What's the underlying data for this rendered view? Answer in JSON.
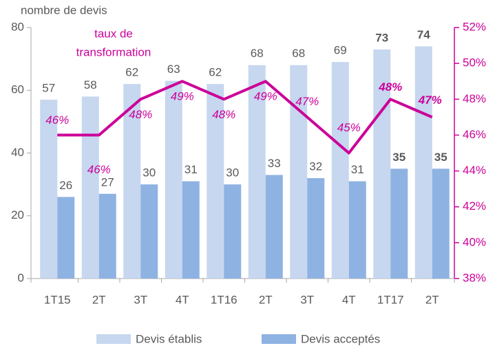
{
  "chart_data": {
    "type": "bar",
    "y_label": "nombre de devis",
    "y2_label_lines": [
      "taux de",
      "transformation"
    ],
    "categories": [
      "1T15",
      "2T",
      "3T",
      "4T",
      "1T16",
      "2T",
      "3T",
      "4T",
      "1T17",
      "2T"
    ],
    "series": [
      {
        "name": "Devis établis",
        "color": "#c6d7ef",
        "values": [
          57,
          58,
          62,
          63,
          62,
          68,
          68,
          69,
          73,
          74
        ]
      },
      {
        "name": "Devis acceptés",
        "color": "#8eb2e2",
        "values": [
          26,
          27,
          30,
          31,
          30,
          33,
          32,
          31,
          35,
          35
        ]
      },
      {
        "name": "taux de transformation",
        "type": "line",
        "axis": "y2",
        "color": "#cc0099",
        "values": [
          46,
          46,
          48,
          49,
          48,
          49,
          47,
          45,
          48,
          47
        ],
        "value_labels": [
          "46%",
          "46%",
          "48%",
          "49%",
          "48%",
          "49%",
          "47%",
          "45%",
          "48%",
          "47%"
        ]
      }
    ],
    "ylim": [
      0,
      80
    ],
    "yticks": [
      0,
      20,
      40,
      60,
      80
    ],
    "y2lim": [
      38,
      52
    ],
    "y2ticks": [
      {
        "value": 38,
        "label": "38%"
      },
      {
        "value": 40,
        "label": "40%"
      },
      {
        "value": 42,
        "label": "42%"
      },
      {
        "value": 44,
        "label": "44%"
      },
      {
        "value": 46,
        "label": "46%"
      },
      {
        "value": 48,
        "label": "48%"
      },
      {
        "value": 50,
        "label": "50%"
      },
      {
        "value": 52,
        "label": "52%"
      }
    ],
    "legend": "bottom"
  }
}
